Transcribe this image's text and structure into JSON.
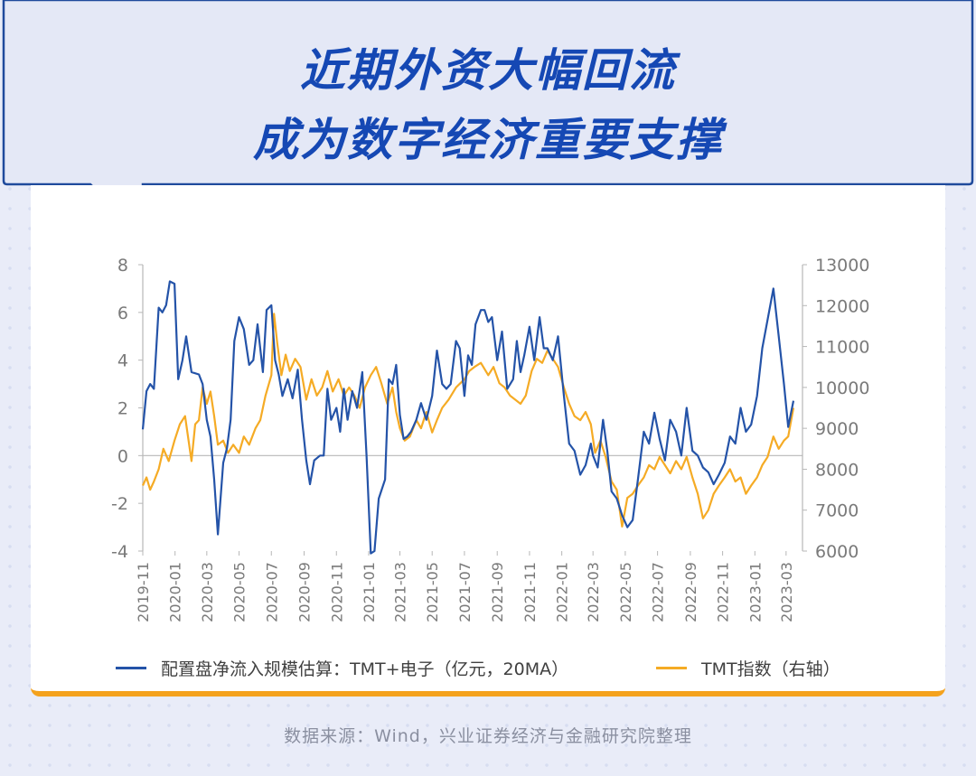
{
  "header": {
    "title_line1": "近期外资大幅回流",
    "title_line2": "成为数字经济重要支撑"
  },
  "source": "数据来源：Wind，兴业证券经济与金融研究院整理",
  "colors": {
    "blue_series": "#2453a8",
    "orange_series": "#f5ab25",
    "title": "#1548b4",
    "accent_border": "#f4a21d",
    "background": "#e9ecf8"
  },
  "chart_data": {
    "type": "line",
    "x_tick_labels": [
      "2019-11",
      "2020-01",
      "2020-03",
      "2020-05",
      "2020-07",
      "2020-09",
      "2020-11",
      "2021-01",
      "2021-03",
      "2021-05",
      "2021-07",
      "2021-09",
      "2021-11",
      "2022-01",
      "2022-03",
      "2022-05",
      "2022-07",
      "2022-09",
      "2022-11",
      "2023-01",
      "2023-03"
    ],
    "y_left": {
      "ylim": [
        -4,
        8
      ],
      "ticks": [
        "8",
        "6",
        "4",
        "2",
        "0",
        "-2",
        "-4"
      ]
    },
    "y_right": {
      "ylim": [
        6000,
        13000
      ],
      "ticks": [
        "13000",
        "12000",
        "11000",
        "10000",
        "9000",
        "8000",
        "7000",
        "6000"
      ]
    },
    "x_range": [
      "2019-11-01",
      "2023-04-01"
    ],
    "grid": false,
    "legend_position": "bottom",
    "series": [
      {
        "name": "配置盘净流入规模估算：TMT+电子（亿元，20MA）",
        "axis": "left",
        "points": [
          [
            "2019-11-01",
            1.1
          ],
          [
            "2019-11-08",
            2.7
          ],
          [
            "2019-11-15",
            3.0
          ],
          [
            "2019-11-22",
            2.8
          ],
          [
            "2019-12-01",
            6.2
          ],
          [
            "2019-12-08",
            6.0
          ],
          [
            "2019-12-15",
            6.3
          ],
          [
            "2019-12-22",
            7.3
          ],
          [
            "2019-12-31",
            7.2
          ],
          [
            "2020-01-07",
            3.2
          ],
          [
            "2020-01-15",
            4.0
          ],
          [
            "2020-01-22",
            5.0
          ],
          [
            "2020-02-01",
            3.5
          ],
          [
            "2020-02-15",
            3.4
          ],
          [
            "2020-02-22",
            3.0
          ],
          [
            "2020-03-01",
            1.5
          ],
          [
            "2020-03-08",
            0.8
          ],
          [
            "2020-03-15",
            -1.0
          ],
          [
            "2020-03-22",
            -3.3
          ],
          [
            "2020-04-01",
            -0.3
          ],
          [
            "2020-04-08",
            0.3
          ],
          [
            "2020-04-15",
            1.5
          ],
          [
            "2020-04-22",
            4.8
          ],
          [
            "2020-05-01",
            5.8
          ],
          [
            "2020-05-10",
            5.3
          ],
          [
            "2020-05-20",
            3.8
          ],
          [
            "2020-05-28",
            4.0
          ],
          [
            "2020-06-05",
            5.5
          ],
          [
            "2020-06-15",
            3.5
          ],
          [
            "2020-06-22",
            6.1
          ],
          [
            "2020-07-01",
            6.3
          ],
          [
            "2020-07-08",
            4.0
          ],
          [
            "2020-07-15",
            3.4
          ],
          [
            "2020-07-22",
            2.5
          ],
          [
            "2020-08-01",
            3.2
          ],
          [
            "2020-08-10",
            2.4
          ],
          [
            "2020-08-20",
            3.6
          ],
          [
            "2020-08-28",
            1.5
          ],
          [
            "2020-09-05",
            -0.2
          ],
          [
            "2020-09-12",
            -1.2
          ],
          [
            "2020-09-20",
            -0.2
          ],
          [
            "2020-10-01",
            0.0
          ],
          [
            "2020-10-08",
            0.0
          ],
          [
            "2020-10-15",
            2.8
          ],
          [
            "2020-10-22",
            1.5
          ],
          [
            "2020-11-01",
            2.0
          ],
          [
            "2020-11-08",
            1.0
          ],
          [
            "2020-11-15",
            2.8
          ],
          [
            "2020-11-22",
            1.5
          ],
          [
            "2020-12-01",
            2.7
          ],
          [
            "2020-12-10",
            2.0
          ],
          [
            "2020-12-20",
            3.5
          ],
          [
            "2020-12-28",
            0.0
          ],
          [
            "2021-01-05",
            -4.1
          ],
          [
            "2021-01-12",
            -4.0
          ],
          [
            "2021-01-20",
            -1.8
          ],
          [
            "2021-02-01",
            -1.0
          ],
          [
            "2021-02-08",
            3.2
          ],
          [
            "2021-02-15",
            3.0
          ],
          [
            "2021-02-22",
            3.8
          ],
          [
            "2021-03-01",
            1.7
          ],
          [
            "2021-03-08",
            0.7
          ],
          [
            "2021-03-15",
            0.8
          ],
          [
            "2021-03-22",
            1.0
          ],
          [
            "2021-04-01",
            1.5
          ],
          [
            "2021-04-10",
            2.2
          ],
          [
            "2021-04-20",
            1.5
          ],
          [
            "2021-05-01",
            2.5
          ],
          [
            "2021-05-10",
            4.4
          ],
          [
            "2021-05-20",
            3.0
          ],
          [
            "2021-05-28",
            2.8
          ],
          [
            "2021-06-05",
            3.0
          ],
          [
            "2021-06-15",
            4.8
          ],
          [
            "2021-06-22",
            4.5
          ],
          [
            "2021-07-01",
            2.5
          ],
          [
            "2021-07-08",
            4.2
          ],
          [
            "2021-07-15",
            3.8
          ],
          [
            "2021-07-22",
            5.5
          ],
          [
            "2021-08-01",
            6.1
          ],
          [
            "2021-08-08",
            6.1
          ],
          [
            "2021-08-15",
            5.6
          ],
          [
            "2021-08-22",
            5.8
          ],
          [
            "2021-09-01",
            4.0
          ],
          [
            "2021-09-10",
            5.2
          ],
          [
            "2021-09-20",
            2.8
          ],
          [
            "2021-10-01",
            3.2
          ],
          [
            "2021-10-08",
            4.8
          ],
          [
            "2021-10-15",
            3.5
          ],
          [
            "2021-10-22",
            4.2
          ],
          [
            "2021-11-01",
            5.4
          ],
          [
            "2021-11-10",
            4.0
          ],
          [
            "2021-11-20",
            5.8
          ],
          [
            "2021-11-28",
            4.5
          ],
          [
            "2021-12-05",
            4.5
          ],
          [
            "2021-12-15",
            4.0
          ],
          [
            "2021-12-25",
            5.0
          ],
          [
            "2022-01-05",
            2.5
          ],
          [
            "2022-01-15",
            0.5
          ],
          [
            "2022-01-25",
            0.2
          ],
          [
            "2022-02-05",
            -0.8
          ],
          [
            "2022-02-15",
            -0.4
          ],
          [
            "2022-02-25",
            0.5
          ],
          [
            "2022-03-01",
            0.0
          ],
          [
            "2022-03-10",
            -0.5
          ],
          [
            "2022-03-20",
            1.5
          ],
          [
            "2022-03-28",
            0.2
          ],
          [
            "2022-04-05",
            -1.5
          ],
          [
            "2022-04-15",
            -1.8
          ],
          [
            "2022-04-25",
            -2.5
          ],
          [
            "2022-05-05",
            -3.0
          ],
          [
            "2022-05-15",
            -2.7
          ],
          [
            "2022-05-25",
            -1.0
          ],
          [
            "2022-06-05",
            1.0
          ],
          [
            "2022-06-15",
            0.5
          ],
          [
            "2022-06-25",
            1.8
          ],
          [
            "2022-07-05",
            0.7
          ],
          [
            "2022-07-15",
            -0.2
          ],
          [
            "2022-07-25",
            1.5
          ],
          [
            "2022-08-05",
            1.0
          ],
          [
            "2022-08-15",
            0.0
          ],
          [
            "2022-08-25",
            2.0
          ],
          [
            "2022-09-05",
            0.2
          ],
          [
            "2022-09-15",
            0.0
          ],
          [
            "2022-09-25",
            -0.5
          ],
          [
            "2022-10-05",
            -0.7
          ],
          [
            "2022-10-15",
            -1.2
          ],
          [
            "2022-10-25",
            -0.8
          ],
          [
            "2022-11-05",
            -0.3
          ],
          [
            "2022-11-15",
            0.8
          ],
          [
            "2022-11-25",
            0.5
          ],
          [
            "2022-12-05",
            2.0
          ],
          [
            "2022-12-15",
            1.0
          ],
          [
            "2022-12-25",
            1.3
          ],
          [
            "2023-01-05",
            2.5
          ],
          [
            "2023-01-15",
            4.5
          ],
          [
            "2023-01-25",
            5.7
          ],
          [
            "2023-02-05",
            7.0
          ],
          [
            "2023-02-15",
            5.0
          ],
          [
            "2023-02-25",
            3.0
          ],
          [
            "2023-03-05",
            1.2
          ],
          [
            "2023-03-15",
            2.3
          ]
        ]
      },
      {
        "name": "TMT指数（右轴）",
        "axis": "right",
        "points": [
          [
            "2019-11-01",
            7600
          ],
          [
            "2019-11-08",
            7800
          ],
          [
            "2019-11-15",
            7500
          ],
          [
            "2019-11-22",
            7700
          ],
          [
            "2019-12-01",
            8000
          ],
          [
            "2019-12-10",
            8500
          ],
          [
            "2019-12-20",
            8200
          ],
          [
            "2019-12-31",
            8700
          ],
          [
            "2020-01-10",
            9100
          ],
          [
            "2020-01-20",
            9300
          ],
          [
            "2020-02-01",
            8200
          ],
          [
            "2020-02-08",
            9100
          ],
          [
            "2020-02-15",
            9200
          ],
          [
            "2020-02-22",
            10000
          ],
          [
            "2020-03-01",
            9600
          ],
          [
            "2020-03-08",
            9900
          ],
          [
            "2020-03-15",
            9300
          ],
          [
            "2020-03-22",
            8600
          ],
          [
            "2020-04-01",
            8700
          ],
          [
            "2020-04-10",
            8400
          ],
          [
            "2020-04-20",
            8600
          ],
          [
            "2020-05-01",
            8400
          ],
          [
            "2020-05-10",
            8800
          ],
          [
            "2020-05-20",
            8600
          ],
          [
            "2020-06-01",
            9000
          ],
          [
            "2020-06-10",
            9200
          ],
          [
            "2020-06-20",
            9800
          ],
          [
            "2020-07-01",
            10300
          ],
          [
            "2020-07-06",
            11800
          ],
          [
            "2020-07-12",
            11100
          ],
          [
            "2020-07-20",
            10300
          ],
          [
            "2020-07-28",
            10800
          ],
          [
            "2020-08-05",
            10400
          ],
          [
            "2020-08-15",
            10700
          ],
          [
            "2020-08-25",
            10500
          ],
          [
            "2020-09-05",
            9700
          ],
          [
            "2020-09-15",
            10200
          ],
          [
            "2020-09-25",
            9800
          ],
          [
            "2020-10-05",
            10000
          ],
          [
            "2020-10-15",
            10400
          ],
          [
            "2020-10-25",
            9900
          ],
          [
            "2020-11-05",
            10200
          ],
          [
            "2020-11-15",
            9800
          ],
          [
            "2020-11-25",
            10000
          ],
          [
            "2020-12-05",
            9800
          ],
          [
            "2020-12-15",
            9500
          ],
          [
            "2020-12-25",
            10000
          ],
          [
            "2021-01-05",
            10300
          ],
          [
            "2021-01-15",
            10500
          ],
          [
            "2021-01-25",
            10100
          ],
          [
            "2021-02-05",
            9600
          ],
          [
            "2021-02-15",
            10000
          ],
          [
            "2021-02-22",
            9400
          ],
          [
            "2021-03-01",
            9000
          ],
          [
            "2021-03-10",
            8700
          ],
          [
            "2021-03-20",
            8800
          ],
          [
            "2021-04-01",
            9200
          ],
          [
            "2021-04-10",
            9000
          ],
          [
            "2021-04-20",
            9400
          ],
          [
            "2021-05-01",
            8900
          ],
          [
            "2021-05-10",
            9200
          ],
          [
            "2021-05-20",
            9500
          ],
          [
            "2021-06-01",
            9700
          ],
          [
            "2021-06-15",
            10000
          ],
          [
            "2021-07-01",
            10200
          ],
          [
            "2021-07-10",
            10400
          ],
          [
            "2021-07-20",
            10500
          ],
          [
            "2021-08-01",
            10600
          ],
          [
            "2021-08-15",
            10300
          ],
          [
            "2021-08-25",
            10500
          ],
          [
            "2021-09-05",
            10100
          ],
          [
            "2021-09-15",
            10000
          ],
          [
            "2021-09-25",
            9800
          ],
          [
            "2021-10-05",
            9700
          ],
          [
            "2021-10-15",
            9600
          ],
          [
            "2021-10-25",
            9800
          ],
          [
            "2021-11-05",
            10400
          ],
          [
            "2021-11-15",
            10700
          ],
          [
            "2021-11-25",
            10600
          ],
          [
            "2021-12-05",
            10900
          ],
          [
            "2021-12-15",
            10700
          ],
          [
            "2021-12-25",
            10500
          ],
          [
            "2022-01-05",
            10000
          ],
          [
            "2022-01-15",
            9600
          ],
          [
            "2022-01-25",
            9300
          ],
          [
            "2022-02-05",
            9200
          ],
          [
            "2022-02-15",
            9400
          ],
          [
            "2022-02-25",
            9100
          ],
          [
            "2022-03-05",
            8400
          ],
          [
            "2022-03-15",
            8700
          ],
          [
            "2022-03-25",
            8300
          ],
          [
            "2022-04-05",
            7700
          ],
          [
            "2022-04-15",
            7500
          ],
          [
            "2022-04-25",
            6600
          ],
          [
            "2022-05-05",
            7300
          ],
          [
            "2022-05-15",
            7400
          ],
          [
            "2022-05-25",
            7600
          ],
          [
            "2022-06-05",
            7800
          ],
          [
            "2022-06-15",
            8100
          ],
          [
            "2022-06-25",
            8000
          ],
          [
            "2022-07-05",
            8300
          ],
          [
            "2022-07-15",
            8100
          ],
          [
            "2022-07-25",
            7900
          ],
          [
            "2022-08-05",
            8200
          ],
          [
            "2022-08-15",
            8000
          ],
          [
            "2022-08-25",
            8300
          ],
          [
            "2022-09-05",
            7800
          ],
          [
            "2022-09-15",
            7400
          ],
          [
            "2022-09-25",
            6800
          ],
          [
            "2022-10-05",
            7000
          ],
          [
            "2022-10-15",
            7400
          ],
          [
            "2022-10-25",
            7600
          ],
          [
            "2022-11-05",
            7800
          ],
          [
            "2022-11-15",
            8000
          ],
          [
            "2022-11-25",
            7700
          ],
          [
            "2022-12-05",
            7800
          ],
          [
            "2022-12-15",
            7400
          ],
          [
            "2022-12-25",
            7600
          ],
          [
            "2023-01-05",
            7800
          ],
          [
            "2023-01-15",
            8100
          ],
          [
            "2023-01-25",
            8300
          ],
          [
            "2023-02-05",
            8800
          ],
          [
            "2023-02-15",
            8500
          ],
          [
            "2023-02-25",
            8700
          ],
          [
            "2023-03-05",
            8800
          ],
          [
            "2023-03-15",
            9500
          ]
        ]
      }
    ]
  }
}
